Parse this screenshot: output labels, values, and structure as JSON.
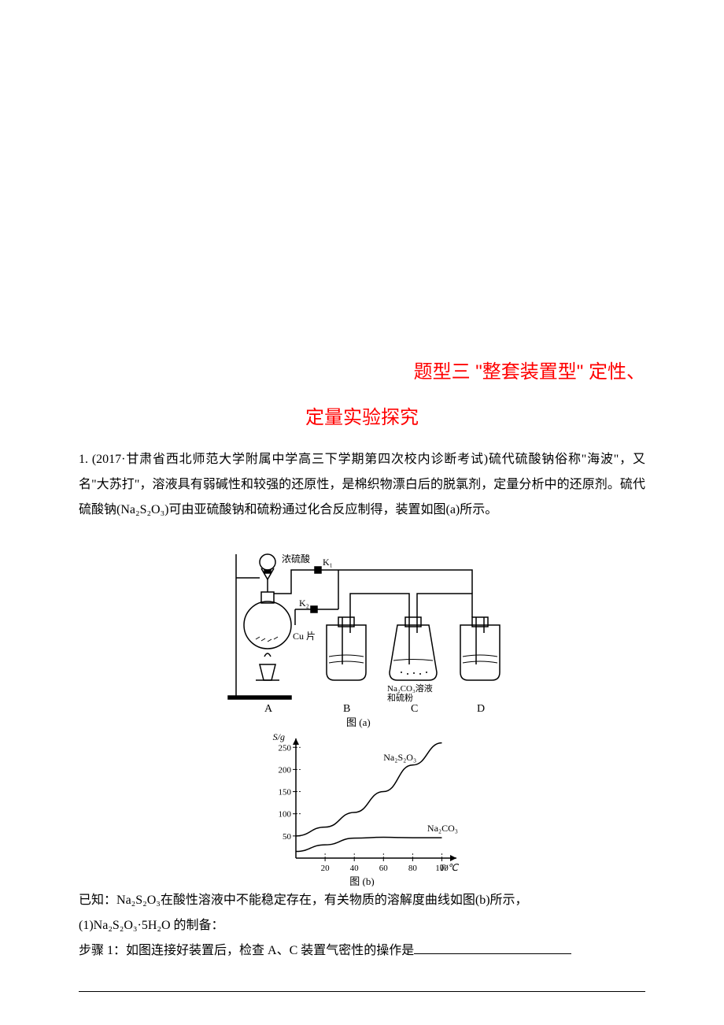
{
  "title": {
    "prefix": "题型三    ",
    "main1": "\"整套装置型\" 定性、",
    "main2": "定量实验探究",
    "color": "#ff0000",
    "fontsize_pt": 18,
    "font_family": "SimHei"
  },
  "body": {
    "question_number": "1.",
    "source": "(2017·甘肃省西北师范大学附属中学高三下学期第四次校内诊断考试)",
    "q1_text": "硫代硫酸钠俗称\"海波\"，又名\"大苏打\"，溶液具有弱碱性和较强的还原性，是棉织物漂白后的脱氯剂，定量分析中的还原剂。硫代硫酸钠(Na₂S₂O₃)可由亚硫酸钠和硫粉通过化合反应制得，装置如图(a)所示。",
    "known_prefix": "已知：",
    "known_text": "Na₂S₂O₃在酸性溶液中不能稳定存在，有关物质的溶解度曲线如图(b)所示，",
    "sub1": "(1)Na₂S₂O₃·5H₂O 的制备：",
    "step1_label": "步骤 1：",
    "step1_text": "如图连接好装置后，检查 A、C 装置气密性的操作是",
    "fontsize_pt": 12,
    "line_height": 2.0,
    "text_color": "#000000"
  },
  "figure_a": {
    "type": "apparatus-schematic",
    "caption": "图 (a)",
    "caption_fontsize": 14,
    "labels": {
      "funnel": "浓硫酸",
      "valve1": "K₁",
      "valve2": "K₂",
      "flask_a_content": "Cu 片",
      "flask_c_content": "Na₂CO₃溶液\n和硫粉",
      "position_A": "A",
      "position_B": "B",
      "position_C": "C",
      "position_D": "D"
    },
    "stroke_color": "#000000",
    "stroke_width": 1.5,
    "background_color": "#ffffff"
  },
  "figure_b": {
    "type": "line",
    "caption": "图 (b)",
    "caption_fontsize": 14,
    "x_label": "T/℃",
    "y_label": "S/g",
    "label_fontsize": 12,
    "x_ticks": [
      20,
      40,
      60,
      80,
      100
    ],
    "y_ticks": [
      50,
      100,
      150,
      200,
      250
    ],
    "xlim": [
      0,
      110
    ],
    "ylim": [
      0,
      270
    ],
    "series": [
      {
        "name": "Na₂S₂O₃",
        "label_position": {
          "x": 60,
          "y": 220
        },
        "points": [
          {
            "x": 0,
            "y": 50
          },
          {
            "x": 20,
            "y": 70
          },
          {
            "x": 40,
            "y": 103
          },
          {
            "x": 60,
            "y": 150
          },
          {
            "x": 80,
            "y": 210
          },
          {
            "x": 100,
            "y": 260
          }
        ],
        "color": "#000000",
        "line_width": 1.5,
        "curve": true
      },
      {
        "name": "Na₂CO₃",
        "label_position": {
          "x": 90,
          "y": 60
        },
        "points": [
          {
            "x": 0,
            "y": 15
          },
          {
            "x": 20,
            "y": 30
          },
          {
            "x": 40,
            "y": 45
          },
          {
            "x": 60,
            "y": 47
          },
          {
            "x": 80,
            "y": 46
          },
          {
            "x": 100,
            "y": 46
          }
        ],
        "color": "#000000",
        "line_width": 1.5,
        "curve": true
      }
    ],
    "axis_color": "#000000",
    "tick_dash": "2,2",
    "background_color": "#ffffff"
  }
}
